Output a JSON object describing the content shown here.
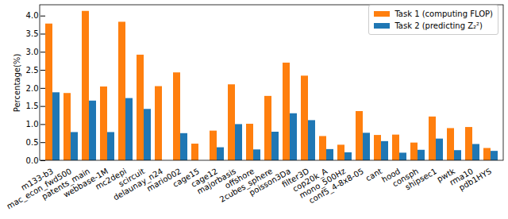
{
  "chart_data": {
    "type": "bar",
    "y_label": "Percentage(%)",
    "categories": [
      "m133-b3",
      "mac_econ_fwd500",
      "patents_main",
      "webbase-1M",
      "mc2depi",
      "scircuit",
      "delaunay_n24",
      "mario002",
      "cage15",
      "cage12",
      "majorbasis",
      "offshore",
      "2cubes_sphere",
      "poisson3Da",
      "filter3D",
      "cop20k_A",
      "mono_500Hz",
      "conf5_4-8x8-05",
      "cant",
      "hood",
      "consph",
      "shipsec1",
      "pwtk",
      "rma10",
      "pdb1HYS"
    ],
    "series": [
      {
        "name": "Task 1 (computing FLOP)",
        "color": "#ff7f0e",
        "values": [
          3.78,
          1.86,
          4.13,
          2.04,
          3.83,
          2.92,
          2.05,
          2.43,
          0.46,
          0.82,
          2.1,
          1.01,
          1.78,
          2.7,
          2.34,
          0.67,
          0.43,
          1.36,
          0.7,
          0.71,
          0.49,
          1.21,
          0.89,
          0.92,
          0.34
        ]
      },
      {
        "name": "Task 2 (predicting Z₂²)",
        "color": "#1f77b4",
        "values": [
          1.88,
          0.78,
          1.65,
          0.78,
          1.72,
          1.42,
          null,
          0.75,
          null,
          0.36,
          1.0,
          0.3,
          0.79,
          1.3,
          1.11,
          0.31,
          0.22,
          0.76,
          0.53,
          0.21,
          0.29,
          0.6,
          0.28,
          0.45,
          0.26
        ]
      }
    ],
    "ylim": [
      0,
      4.3
    ],
    "yticks": [
      {
        "value": 0,
        "label": "0.0"
      },
      0.5,
      {
        "value": 1,
        "label": "1.0"
      },
      1.5,
      {
        "value": 2,
        "label": "2.0"
      },
      2.5,
      {
        "value": 3,
        "label": "3.0"
      },
      3.5,
      {
        "value": 4,
        "label": "4.0"
      }
    ],
    "legend": "upper right",
    "grid": false
  }
}
